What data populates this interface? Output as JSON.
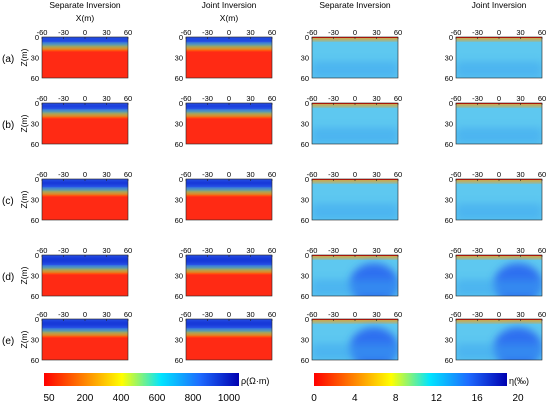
{
  "column_headers": [
    "Separate Inversion",
    "Joint Inversion",
    "Separate Inversion",
    "Joint Inversion"
  ],
  "x_axis_label": "X(m)",
  "y_axis_label": "Z(m)",
  "x_ticks": [
    "-60",
    "-30",
    "0",
    "30",
    "60"
  ],
  "y_ticks": [
    "0",
    "30",
    "60"
  ],
  "row_labels": [
    "(a)",
    "(b)",
    "(c)",
    "(d)",
    "(e)"
  ],
  "colorbars": {
    "resistivity": {
      "label": "ρ(Ω·m)",
      "ticks": [
        "50",
        "200",
        "400",
        "600",
        "800",
        "1000"
      ],
      "colors": [
        "#ff0000",
        "#ff7f00",
        "#ffff00",
        "#00e5ff",
        "#1e6bff",
        "#0000b0"
      ]
    },
    "chargeability": {
      "label": "η(‰)",
      "ticks": [
        "0",
        "4",
        "8",
        "12",
        "16",
        "20"
      ],
      "colors": [
        "#ff0000",
        "#ff7f00",
        "#ffff00",
        "#00e5ff",
        "#1e6bff",
        "#0000b0"
      ]
    }
  },
  "colors": {
    "background_red": "#ff2a14",
    "background_light_blue": "#5ec8f0",
    "anomaly_deep_blue": "#1238d8"
  }
}
